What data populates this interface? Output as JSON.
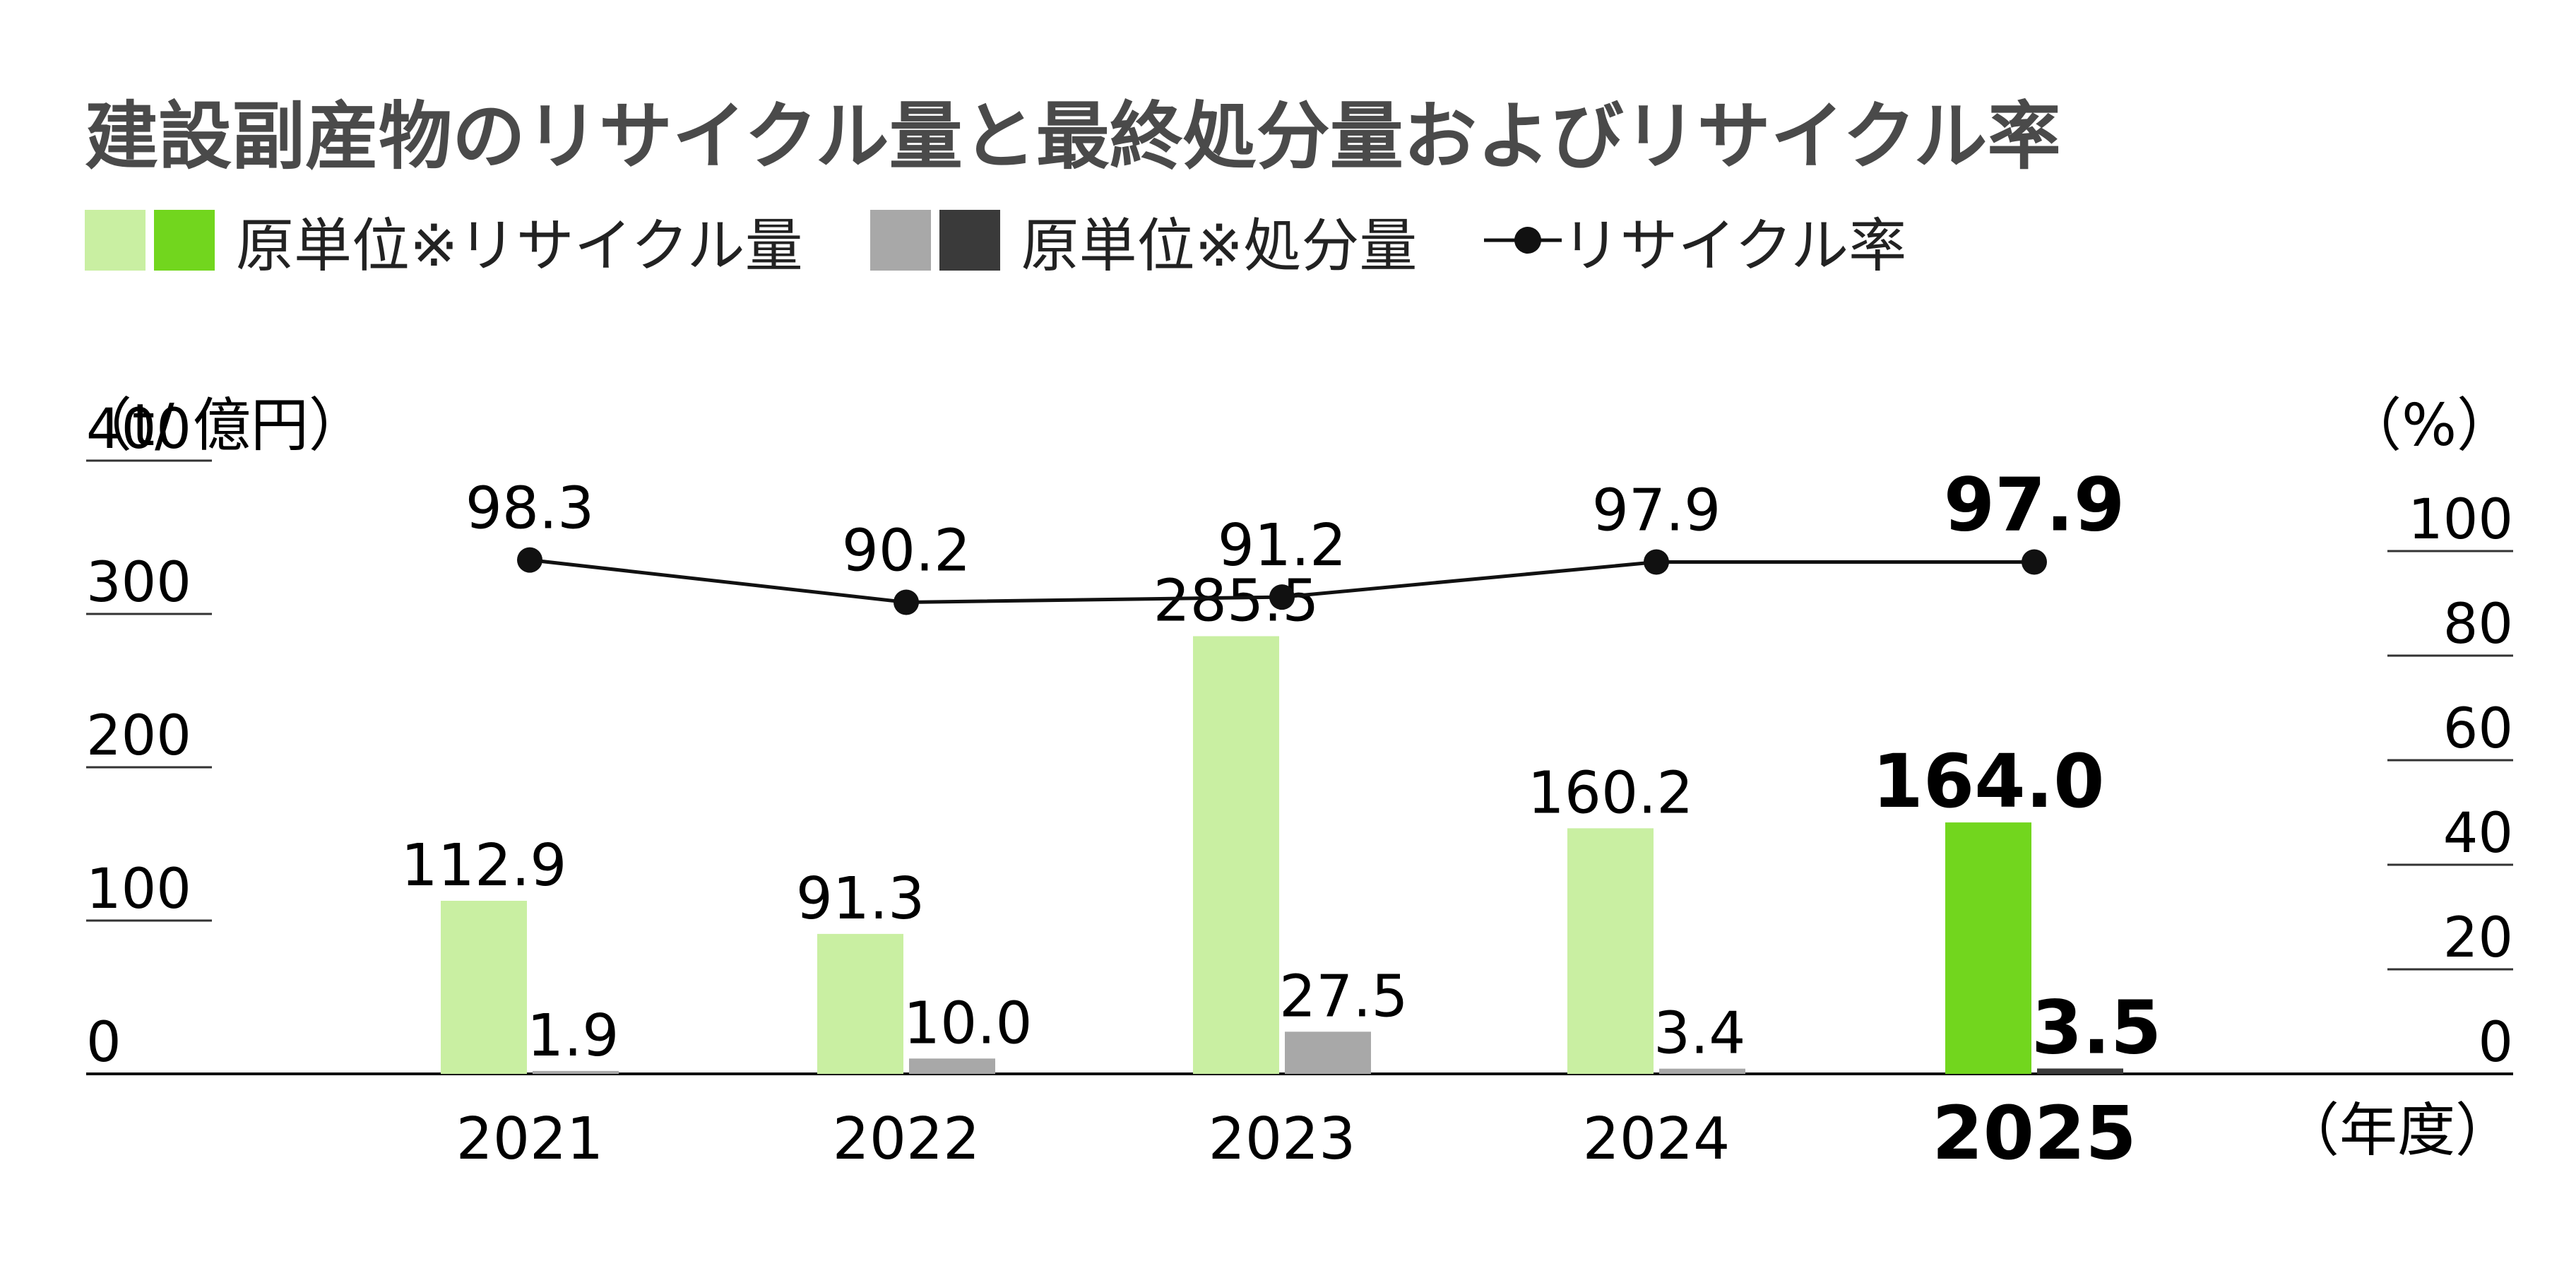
{
  "title": "建設副産物のリサイクル量と最終処分量およびリサイクル率",
  "legend": {
    "recycle_label": "原単位※リサイクル量",
    "disposal_label": "原単位※処分量",
    "rate_label": "リサイクル率"
  },
  "colors": {
    "recycle_light": "#c9efa2",
    "recycle_highlight": "#72d61e",
    "disposal_light": "#a8a8a8",
    "disposal_highlight": "#3a3a3a",
    "line": "#111111",
    "gridline": "#333333"
  },
  "chart_data": {
    "type": "bar",
    "title": "建設副産物のリサイクル量と最終処分量およびリサイクル率",
    "categories": [
      "2021",
      "2022",
      "2023",
      "2024",
      "2025"
    ],
    "highlight_category": "2025",
    "xlabel": "（年度）",
    "ylabel": "（t/ 億円）",
    "ylim": [
      0,
      400
    ],
    "yticks": [
      "0",
      "100",
      "200",
      "300",
      "400"
    ],
    "y2label": "（%）",
    "y2lim": [
      0,
      100
    ],
    "y2ticks": [
      "0",
      "20",
      "40",
      "60",
      "80",
      "100"
    ],
    "series": [
      {
        "name": "原単位※リサイクル量",
        "type": "bar",
        "axis": "left",
        "values": [
          112.9,
          91.3,
          285.5,
          160.2,
          164.0
        ],
        "labels": [
          "112.9",
          "91.3",
          "285.5",
          "160.2",
          "164.0"
        ]
      },
      {
        "name": "原単位※処分量",
        "type": "bar",
        "axis": "left",
        "values": [
          1.9,
          10.0,
          27.5,
          3.4,
          3.5
        ],
        "labels": [
          "1.9",
          "10.0",
          "27.5",
          "3.4",
          "3.5"
        ]
      },
      {
        "name": "リサイクル率",
        "type": "line",
        "axis": "right",
        "values": [
          98.3,
          90.2,
          91.2,
          97.9,
          97.9
        ],
        "labels": [
          "98.3",
          "90.2",
          "91.2",
          "97.9",
          "97.9"
        ]
      }
    ],
    "legend": "top-left",
    "grid": false
  }
}
